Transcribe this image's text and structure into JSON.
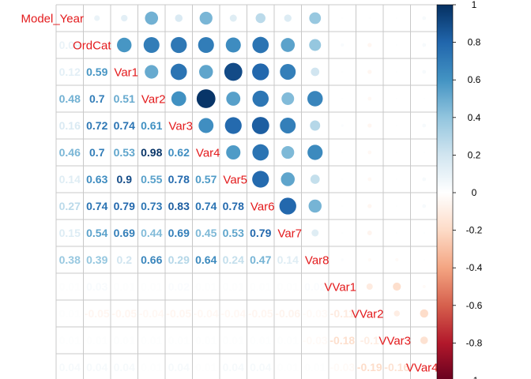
{
  "chart_data": {
    "type": "heatmap",
    "variables": [
      "Model_Year",
      "OrdCat",
      "Var1",
      "Var2",
      "Var3",
      "Var4",
      "Var5",
      "Var6",
      "Var7",
      "Var8",
      "VVar1",
      "VVar2",
      "VVar3",
      "VVar4"
    ],
    "diag_labels": [
      "Model_Year",
      "OrdCat",
      "Var1",
      "Var2",
      "Var3",
      "Var4",
      "Var5",
      "Var6",
      "Var7",
      "Var8",
      "VVar1",
      "VVar2",
      "VVar3",
      "VVar4"
    ],
    "upper_method": "circle",
    "lower_method": "number",
    "matrix": [
      [
        1,
        0.09,
        0.12,
        0.48,
        0.16,
        0.46,
        0.14,
        0.27,
        0.15,
        0.38,
        0.01,
        0.01,
        0.01,
        0.04
      ],
      [
        0.09,
        1,
        0.59,
        0.7,
        0.72,
        0.7,
        0.63,
        0.74,
        0.54,
        0.39,
        0.03,
        -0.05,
        0.01,
        0.04
      ],
      [
        0.12,
        0.59,
        1,
        0.51,
        0.74,
        0.53,
        0.9,
        0.79,
        0.69,
        0.2,
        0.01,
        -0.05,
        0.01,
        0.04
      ],
      [
        0.48,
        0.7,
        0.51,
        1,
        0.61,
        0.98,
        0.55,
        0.73,
        0.44,
        0.66,
        0.01,
        -0.04,
        0.01,
        0.01
      ],
      [
        0.16,
        0.72,
        0.74,
        0.61,
        1,
        0.62,
        0.78,
        0.83,
        0.69,
        0.29,
        0.02,
        -0.05,
        0.01,
        0.04
      ],
      [
        0.46,
        0.7,
        0.53,
        0.98,
        0.62,
        1,
        0.57,
        0.74,
        0.45,
        0.64,
        0.01,
        -0.04,
        0.01,
        0.01
      ],
      [
        0.14,
        0.63,
        0.9,
        0.55,
        0.78,
        0.57,
        1,
        0.78,
        0.53,
        0.24,
        0.01,
        -0.04,
        0.01,
        0.04
      ],
      [
        0.27,
        0.74,
        0.79,
        0.73,
        0.83,
        0.74,
        0.78,
        1,
        0.79,
        0.47,
        0.01,
        -0.05,
        0.01,
        0.04
      ],
      [
        0.15,
        0.54,
        0.69,
        0.44,
        0.69,
        0.45,
        0.53,
        0.79,
        1,
        0.14,
        0.01,
        -0.06,
        0.01,
        0.01
      ],
      [
        0.38,
        0.39,
        0.2,
        0.66,
        0.29,
        0.64,
        0.24,
        0.47,
        0.14,
        1,
        0.02,
        -0.03,
        -0.03,
        0.01
      ],
      [
        0.01,
        0.03,
        0.01,
        0.01,
        0.02,
        0.01,
        0.01,
        0.01,
        0.01,
        0.02,
        1,
        -0.11,
        -0.18,
        -0.03
      ],
      [
        0.01,
        -0.05,
        -0.05,
        -0.04,
        -0.05,
        -0.04,
        -0.04,
        -0.05,
        -0.06,
        -0.03,
        -0.11,
        1,
        -0.1,
        -0.19
      ],
      [
        0.01,
        0.01,
        0.01,
        0.01,
        0.01,
        0.01,
        0.01,
        0.01,
        0.01,
        -0.03,
        -0.18,
        -0.1,
        1,
        -0.16
      ],
      [
        0.04,
        0.04,
        0.04,
        0.01,
        0.04,
        0.01,
        0.04,
        0.04,
        0.01,
        0.01,
        -0.03,
        -0.19,
        -0.16,
        1
      ]
    ],
    "colorbar": {
      "range": [
        -1,
        1
      ],
      "ticks": [
        "1",
        "0.8",
        "0.6",
        "0.4",
        "0.2",
        "0",
        "-0.2",
        "-0.4",
        "-0.6",
        "-0.8",
        "-1"
      ],
      "tick_values": [
        1,
        0.8,
        0.6,
        0.4,
        0.2,
        0,
        -0.2,
        -0.4,
        -0.6,
        -0.8,
        -1
      ],
      "palette": [
        "#67001F",
        "#B2182B",
        "#D6604D",
        "#F4A582",
        "#FDDBC7",
        "#FFFFFF",
        "#D1E5F0",
        "#92C5DE",
        "#4393C3",
        "#2166AC",
        "#053061"
      ]
    },
    "colors": {
      "label": "#E31A1C",
      "grid": "#C8C8C8"
    }
  }
}
